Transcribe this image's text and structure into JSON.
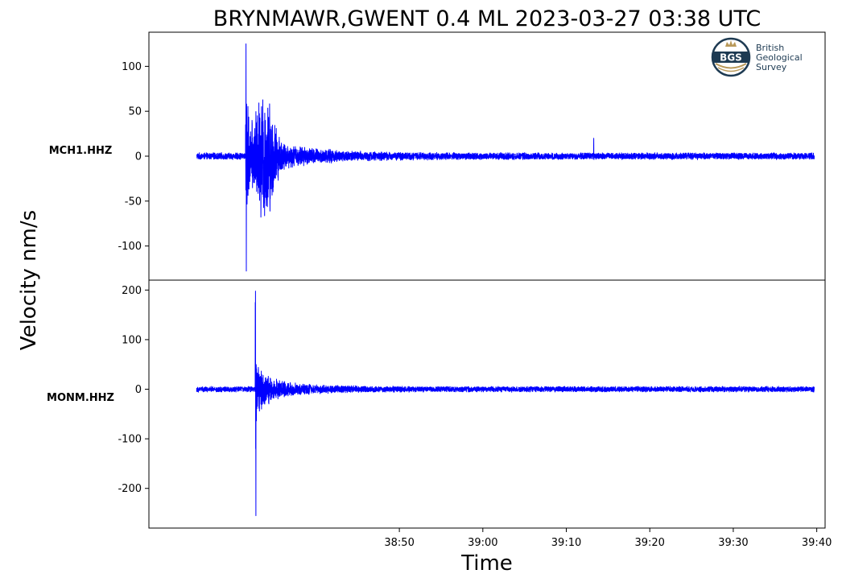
{
  "chart_data": {
    "type": "line",
    "title": "BRYNMAWR,GWENT 0.4 ML   2023-03-27 03:38 UTC",
    "xlabel": "Time",
    "ylabel": "Velocity nm/s",
    "x_range_seconds_after_0338": [
      20,
      587
    ],
    "x_ticks": [
      {
        "t": 230,
        "label": "38:50"
      },
      {
        "t": 300,
        "label": "39:00"
      },
      {
        "t": 370,
        "label": "39:10"
      },
      {
        "t": 440,
        "label": "39:20"
      },
      {
        "t": 510,
        "label": "39:30"
      },
      {
        "t": 580,
        "label": "39:40"
      }
    ],
    "line_color": "#0000ff",
    "grid": false,
    "panels": [
      {
        "station": "MCH1.HHZ",
        "ylim": [
          -138,
          138
        ],
        "y_ticks": [
          {
            "v": 100,
            "label": "100"
          },
          {
            "v": 50,
            "label": "50"
          },
          {
            "v": 0,
            "label": "0"
          },
          {
            "v": -50,
            "label": "-50"
          },
          {
            "v": -100,
            "label": "-100"
          }
        ],
        "trace_start": 60,
        "trace_end": 578,
        "event_onset": 101,
        "peak_max": 125,
        "peak_min": -128,
        "noise_amplitude": 4
      },
      {
        "station": "MONM.HHZ",
        "ylim": [
          -280,
          220
        ],
        "y_ticks": [
          {
            "v": 200,
            "label": "200"
          },
          {
            "v": 100,
            "label": "100"
          },
          {
            "v": 0,
            "label": "0"
          },
          {
            "v": -100,
            "label": "-100"
          },
          {
            "v": -200,
            "label": "-200"
          }
        ],
        "trace_start": 60,
        "trace_end": 578,
        "event_onset": 109,
        "peak_max": 198,
        "peak_min": -255,
        "noise_amplitude": 6
      }
    ]
  },
  "logo": {
    "initials": "BGS",
    "line1": "British",
    "line2": "Geological",
    "line3": "Survey"
  }
}
